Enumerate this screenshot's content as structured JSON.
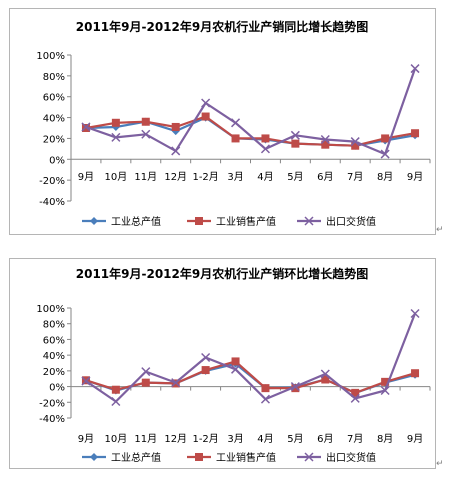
{
  "chart_data": [
    {
      "type": "line",
      "title": "2011年9月-2012年9月农机行业产销同比增长趋势图",
      "categories": [
        "9月",
        "10月",
        "11月",
        "12月",
        "1-2月",
        "3月",
        "4月",
        "5月",
        "6月",
        "7月",
        "8月",
        "9月"
      ],
      "y_ticks": [
        "100%",
        "80%",
        "60%",
        "40%",
        "20%",
        "0%",
        "-20%",
        "-40%"
      ],
      "ylim": [
        -40,
        100
      ],
      "grid": false,
      "legend_position": "bottom",
      "series": [
        {
          "name": "工业总产值",
          "color": "#4a7ebb",
          "marker": "diamond",
          "values": [
            30,
            31,
            36,
            27,
            40,
            20,
            19,
            15,
            14,
            13,
            18,
            23
          ]
        },
        {
          "name": "工业销售产值",
          "color": "#be4b48",
          "marker": "square",
          "values": [
            30,
            35,
            36,
            31,
            41,
            20,
            20,
            15,
            14,
            13,
            20,
            25
          ]
        },
        {
          "name": "出口交货值",
          "color": "#7d60a0",
          "marker": "x",
          "values": [
            31,
            21,
            24,
            8,
            54,
            35,
            10,
            23,
            19,
            17,
            5,
            87
          ]
        }
      ]
    },
    {
      "type": "line",
      "title": "2011年9月-2012年9月农机行业产销环比增长趋势图",
      "categories": [
        "9月",
        "10月",
        "11月",
        "12月",
        "1-2月",
        "3月",
        "4月",
        "5月",
        "6月",
        "7月",
        "8月",
        "9月"
      ],
      "y_ticks": [
        "100%",
        "80%",
        "60%",
        "40%",
        "20%",
        "0%",
        "-20%",
        "-40%"
      ],
      "ylim": [
        -40,
        100
      ],
      "grid": false,
      "legend_position": "bottom",
      "series": [
        {
          "name": "工业总产值",
          "color": "#4a7ebb",
          "marker": "diamond",
          "values": [
            8,
            -5,
            5,
            4,
            20,
            29,
            -2,
            -1,
            9,
            -8,
            5,
            15
          ]
        },
        {
          "name": "工业销售产值",
          "color": "#be4b48",
          "marker": "square",
          "values": [
            8,
            -4,
            5,
            4,
            21,
            32,
            -2,
            -2,
            9,
            -8,
            6,
            17
          ]
        },
        {
          "name": "出口交货值",
          "color": "#7d60a0",
          "marker": "x",
          "values": [
            7,
            -19,
            19,
            5,
            37,
            22,
            -16,
            0,
            16,
            -15,
            -5,
            93
          ]
        }
      ]
    }
  ]
}
